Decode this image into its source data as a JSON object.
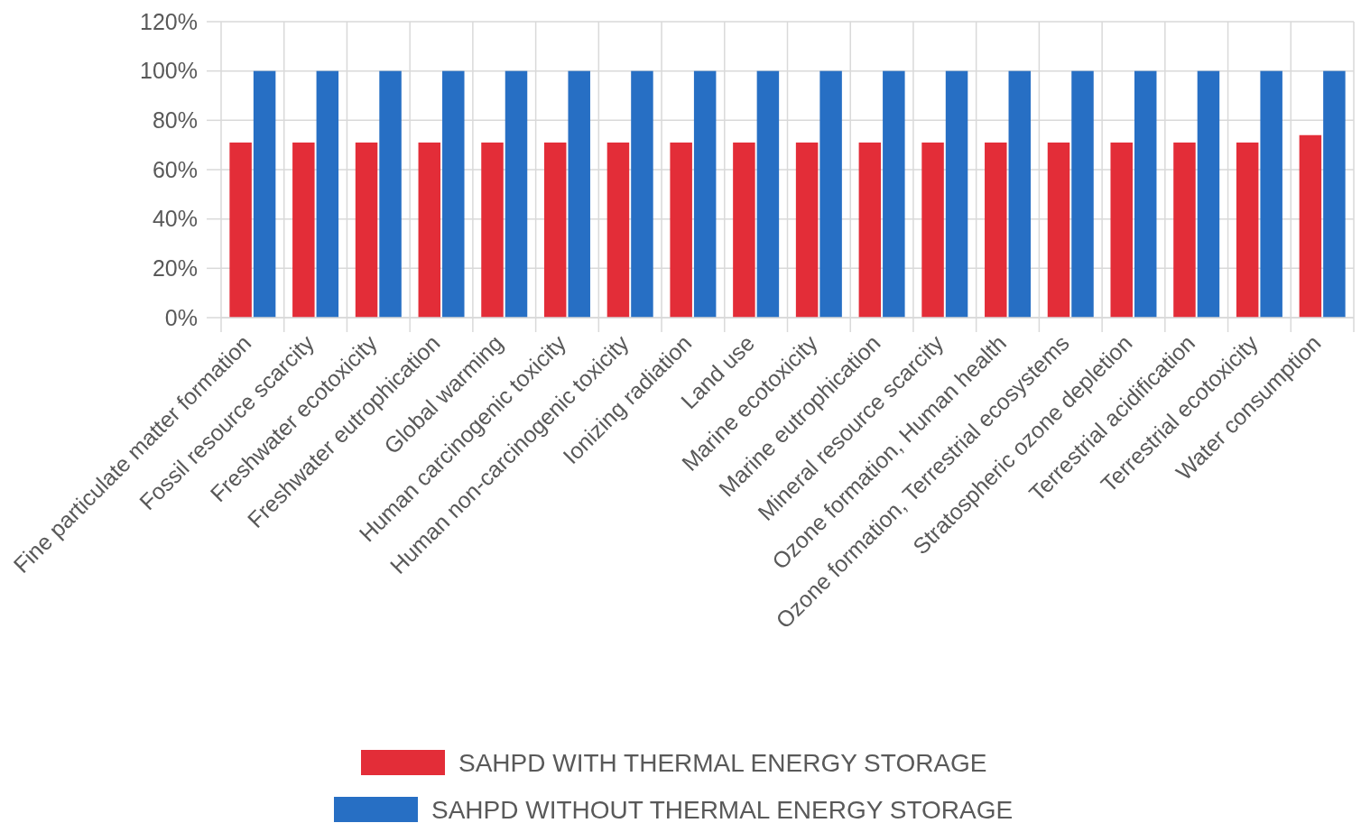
{
  "chart_data": {
    "type": "bar",
    "categories": [
      "Fine particulate matter formation",
      "Fossil resource scarcity",
      "Freshwater ecotoxicity",
      "Freshwater eutrophication",
      "Global warming",
      "Human carcinogenic toxicity",
      "Human non-carcinogenic toxicity",
      "Ionizing radiation",
      "Land use",
      "Marine ecotoxicity",
      "Marine eutrophication",
      "Mineral resource scarcity",
      "Ozone formation, Human health",
      "Ozone formation, Terrestrial ecosystems",
      "Stratospheric ozone depletion",
      "Terrestrial acidification",
      "Terrestrial ecotoxicity",
      "Water consumption"
    ],
    "series": [
      {
        "name": "SAHPD WITH THERMAL ENERGY STORAGE",
        "color": "#e32d38",
        "values": [
          71,
          71,
          71,
          71,
          71,
          71,
          71,
          71,
          71,
          71,
          71,
          71,
          71,
          71,
          71,
          71,
          71,
          74
        ]
      },
      {
        "name": "SAHPD WITHOUT THERMAL ENERGY STORAGE",
        "color": "#276fc4",
        "values": [
          100,
          100,
          100,
          100,
          100,
          100,
          100,
          100,
          100,
          100,
          100,
          100,
          100,
          100,
          100,
          100,
          100,
          100
        ]
      }
    ],
    "ylim": [
      0,
      120
    ],
    "yticks": [
      {
        "value": 0,
        "label": "0%"
      },
      {
        "value": 20,
        "label": "20%"
      },
      {
        "value": 40,
        "label": "40%"
      },
      {
        "value": 60,
        "label": "60%"
      },
      {
        "value": 80,
        "label": "80%"
      },
      {
        "value": 100,
        "label": "100%"
      },
      {
        "value": 120,
        "label": "120%"
      }
    ],
    "grid": true,
    "legend": "bottom"
  }
}
